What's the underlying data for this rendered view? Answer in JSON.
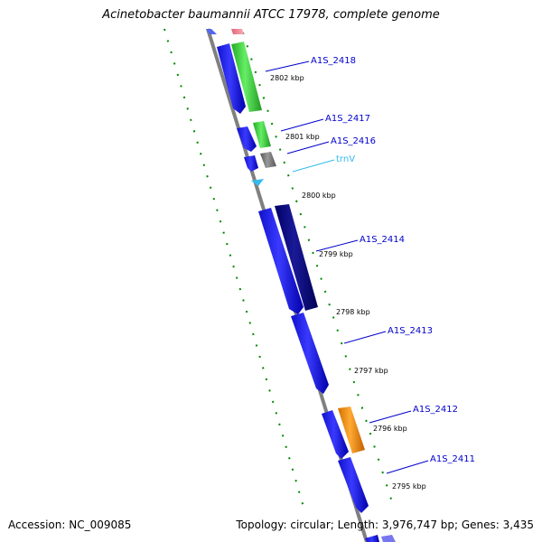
{
  "title": "Acinetobacter baumannii ATCC 17978, complete genome",
  "footer": {
    "accession": "Accession: NC_009085",
    "summary": "Topology: circular; Length: 3,976,747 bp; Genes: 3,435"
  },
  "colors": {
    "backbone": "#808080",
    "gene_blue": "#0000ee",
    "gene_green": "#33cc33",
    "gene_dark": "#000080",
    "gene_gray": "#707070",
    "gene_orange": "#f08c00",
    "trna_cyan": "#33bbee",
    "gc_skew": "#008800",
    "label_blue": "#0000cc"
  },
  "genes": [
    {
      "label": "A1S_2418",
      "color": "green"
    },
    {
      "label": "A1S_2417",
      "color": "green"
    },
    {
      "label": "A1S_2416",
      "color": "gray"
    },
    {
      "label": "trnV",
      "color": "cyan"
    },
    {
      "label": "A1S_2414",
      "color": "dark"
    },
    {
      "label": "A1S_2413",
      "color": "blue"
    },
    {
      "label": "A1S_2412",
      "color": "orange"
    },
    {
      "label": "A1S_2411",
      "color": "blue"
    }
  ],
  "ticks": [
    "2802 kbp",
    "2801 kbp",
    "2800 kbp",
    "2799 kbp",
    "2798 kbp",
    "2797 kbp",
    "2796 kbp",
    "2795 kbp"
  ]
}
